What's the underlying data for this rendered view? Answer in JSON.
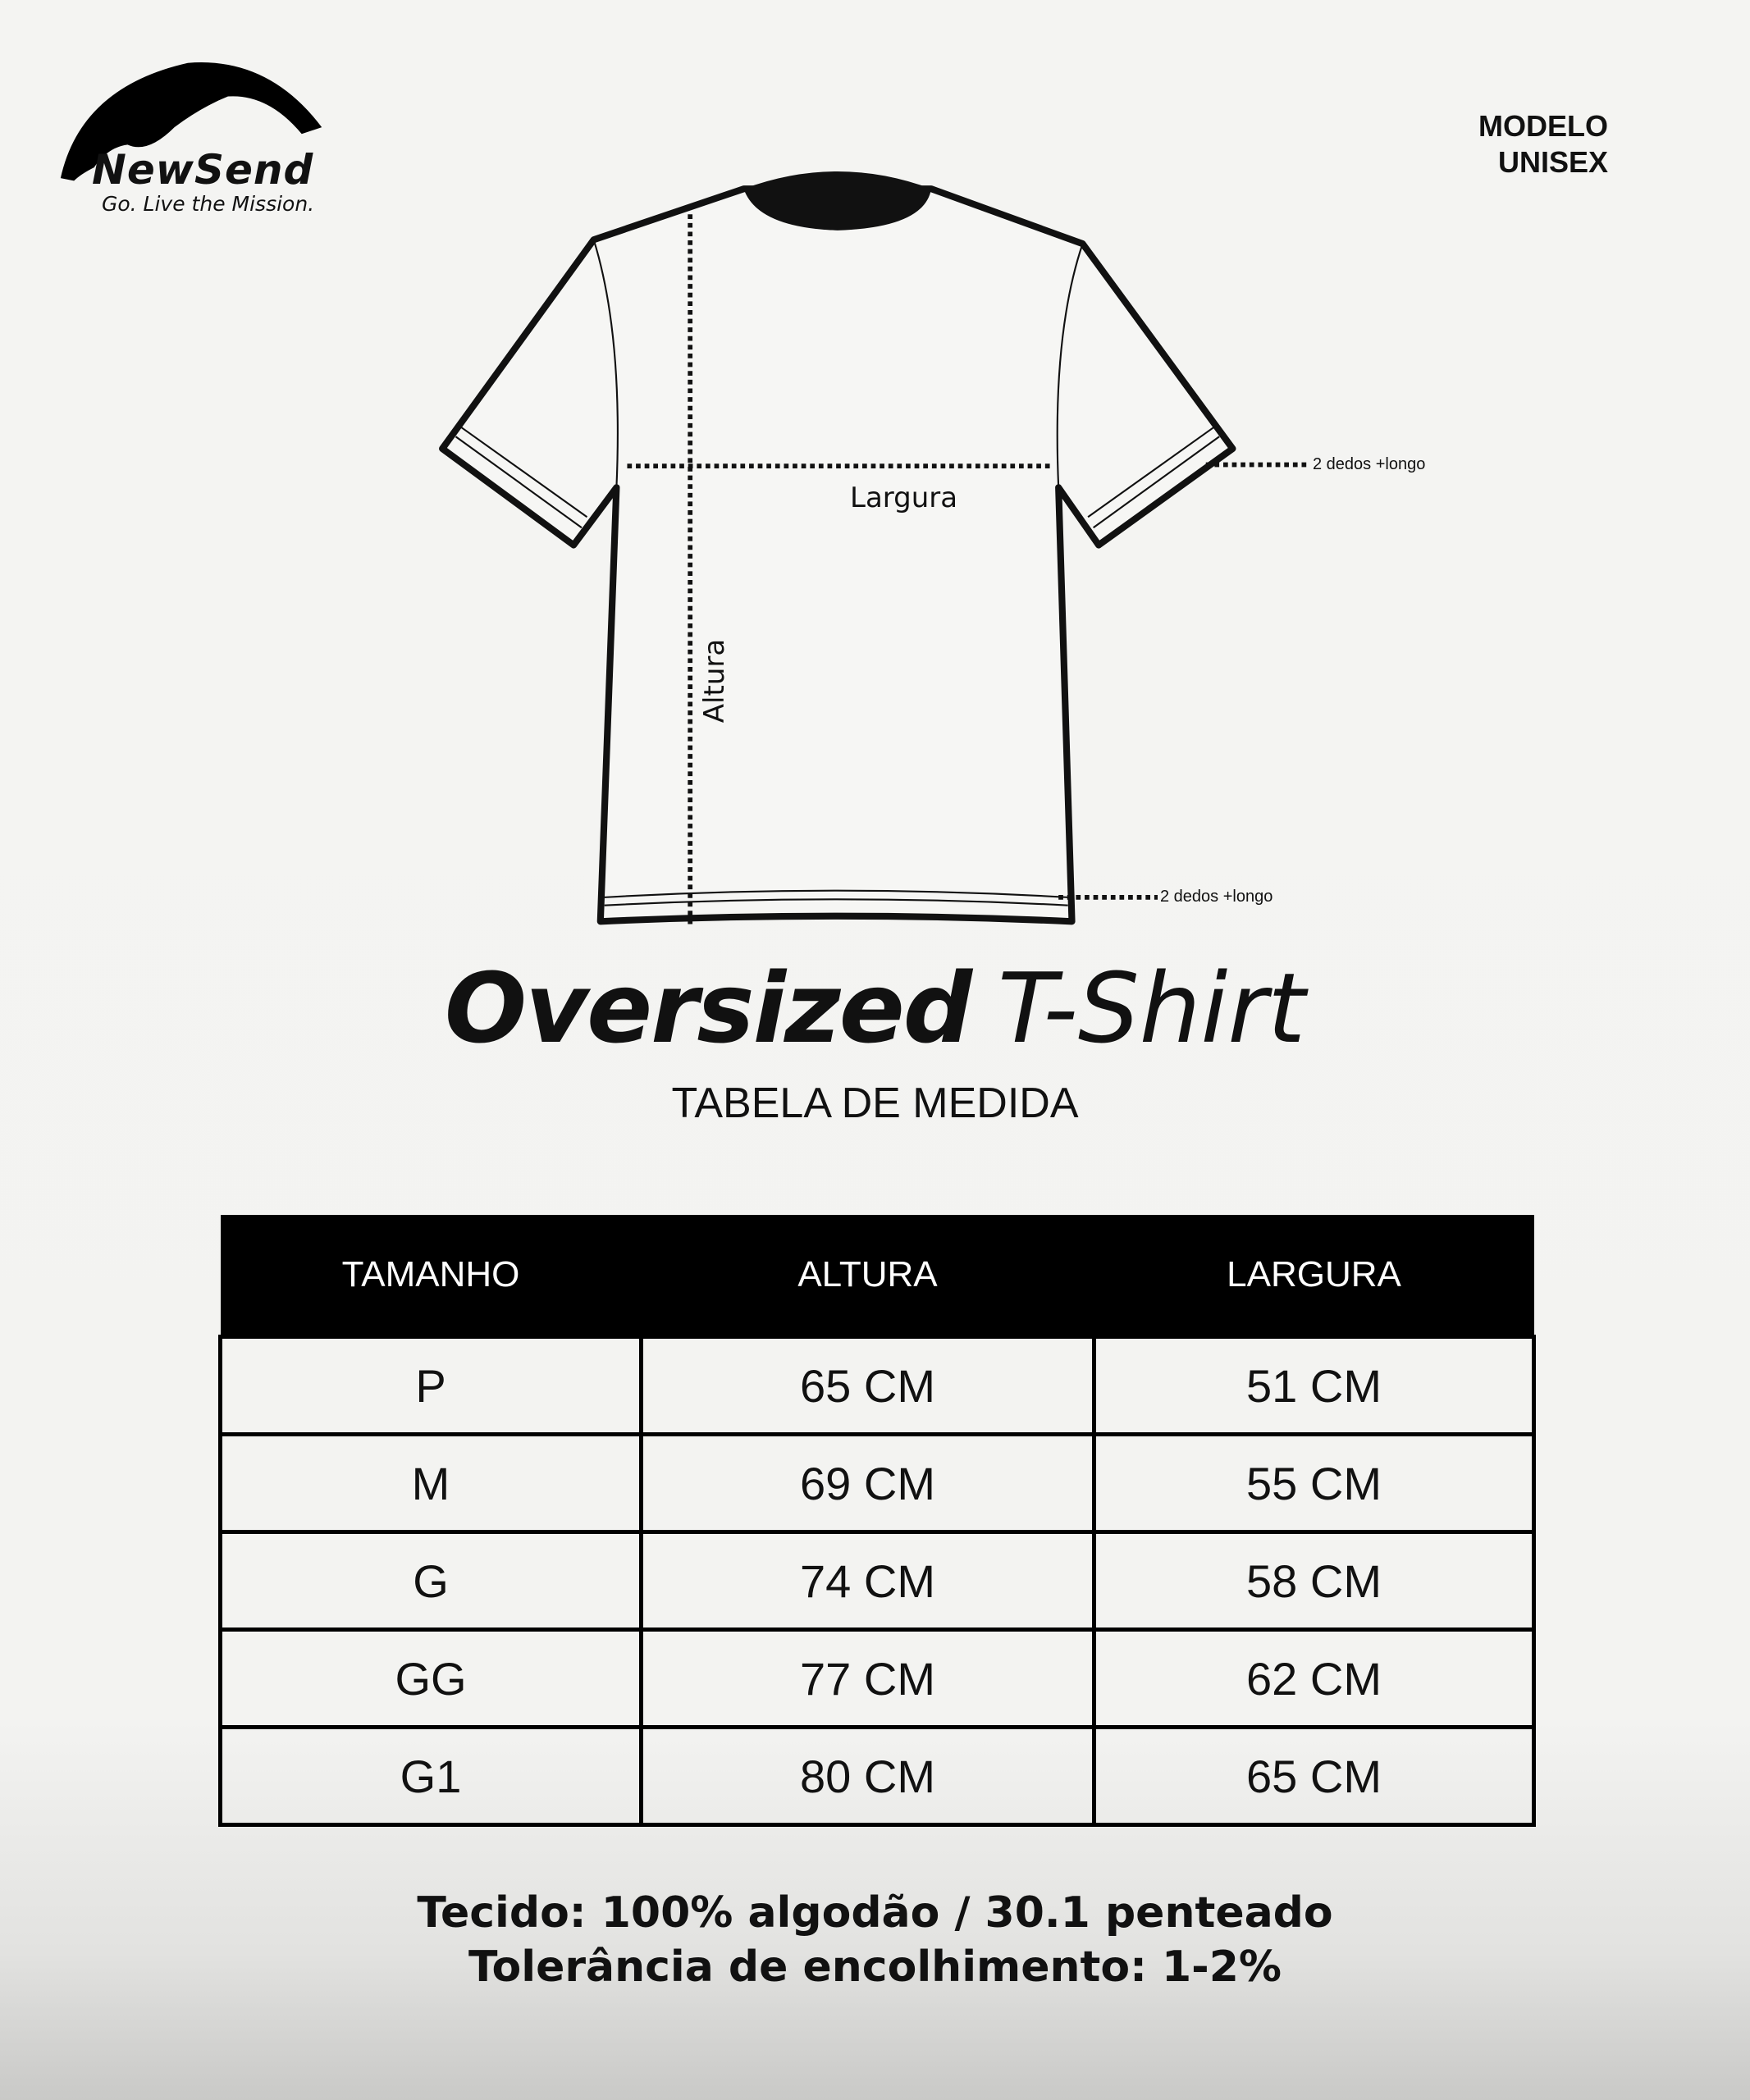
{
  "brand": {
    "name": "NewSend",
    "tagline": "Go. Live the Mission."
  },
  "model": {
    "line1": "MODELO",
    "line2": "UNISEX"
  },
  "diagram": {
    "width_label": "Largura",
    "height_label": "Altura",
    "sleeve_note": "2 dedos +longo",
    "hem_note": "2 dedos +longo"
  },
  "title": {
    "bold": "Oversized",
    "light": "T-Shirt"
  },
  "subtitle": "TABELA DE MEDIDA",
  "table": {
    "headers": [
      "TAMANHO",
      "ALTURA",
      "LARGURA"
    ],
    "rows": [
      [
        "P",
        "65 CM",
        "51 CM"
      ],
      [
        "M",
        "69 CM",
        "55 CM"
      ],
      [
        "G",
        "74 CM",
        "58 CM"
      ],
      [
        "GG",
        "77 CM",
        "62 CM"
      ],
      [
        "G1",
        "80 CM",
        "65 CM"
      ]
    ]
  },
  "footer": {
    "fabric": "Tecido: 100% algodão / 30.1 penteado",
    "tolerance": "Tolerância de encolhimento: 1-2%"
  }
}
